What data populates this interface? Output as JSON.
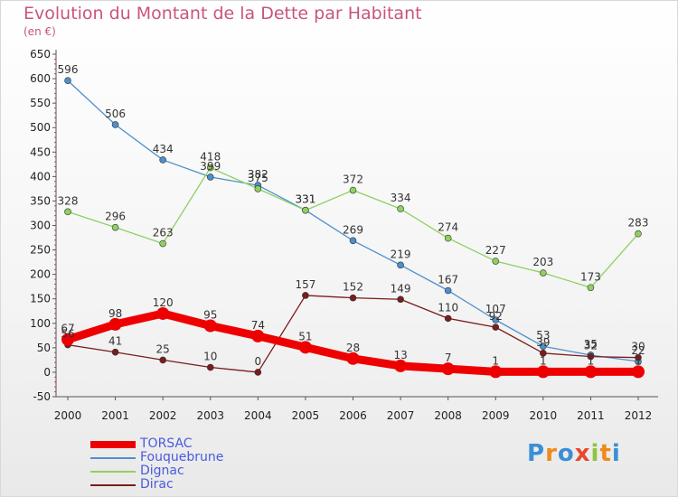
{
  "title": "Evolution du Montant de la Dette par Habitant",
  "unit": "(en €)",
  "brand": {
    "letters": [
      "P",
      "r",
      "o",
      "x",
      "i",
      "t",
      "i"
    ],
    "colors": [
      "#3b8fd6",
      "#f08a1c",
      "#3b8fd6",
      "#e8482c",
      "#8cc63f",
      "#f08a1c",
      "#3b8fd6"
    ]
  },
  "chart_data": {
    "type": "line",
    "x": [
      2000,
      2001,
      2002,
      2003,
      2004,
      2005,
      2006,
      2007,
      2008,
      2009,
      2010,
      2011,
      2012
    ],
    "ylim": [
      -50,
      650
    ],
    "yticks": [
      -50,
      0,
      50,
      100,
      150,
      200,
      250,
      300,
      350,
      400,
      450,
      500,
      550,
      600,
      650
    ],
    "grid": false,
    "legend_position": "bottom-left",
    "series": [
      {
        "name": "TORSAC",
        "color": "#ee0000",
        "values": [
          67,
          98,
          120,
          95,
          74,
          51,
          28,
          13,
          7,
          1,
          1,
          1,
          1
        ]
      },
      {
        "name": "Fouquebrune",
        "color": "#4e8fcc",
        "values": [
          596,
          506,
          434,
          399,
          382,
          331,
          269,
          219,
          167,
          107,
          53,
          35,
          22
        ]
      },
      {
        "name": "Dignac",
        "color": "#8fd060",
        "values": [
          328,
          296,
          263,
          418,
          375,
          331,
          372,
          334,
          274,
          227,
          203,
          173,
          283
        ]
      },
      {
        "name": "Dirac",
        "color": "#7a1c1c",
        "values": [
          56,
          41,
          25,
          10,
          0,
          157,
          152,
          149,
          110,
          92,
          39,
          32,
          30
        ]
      }
    ]
  }
}
